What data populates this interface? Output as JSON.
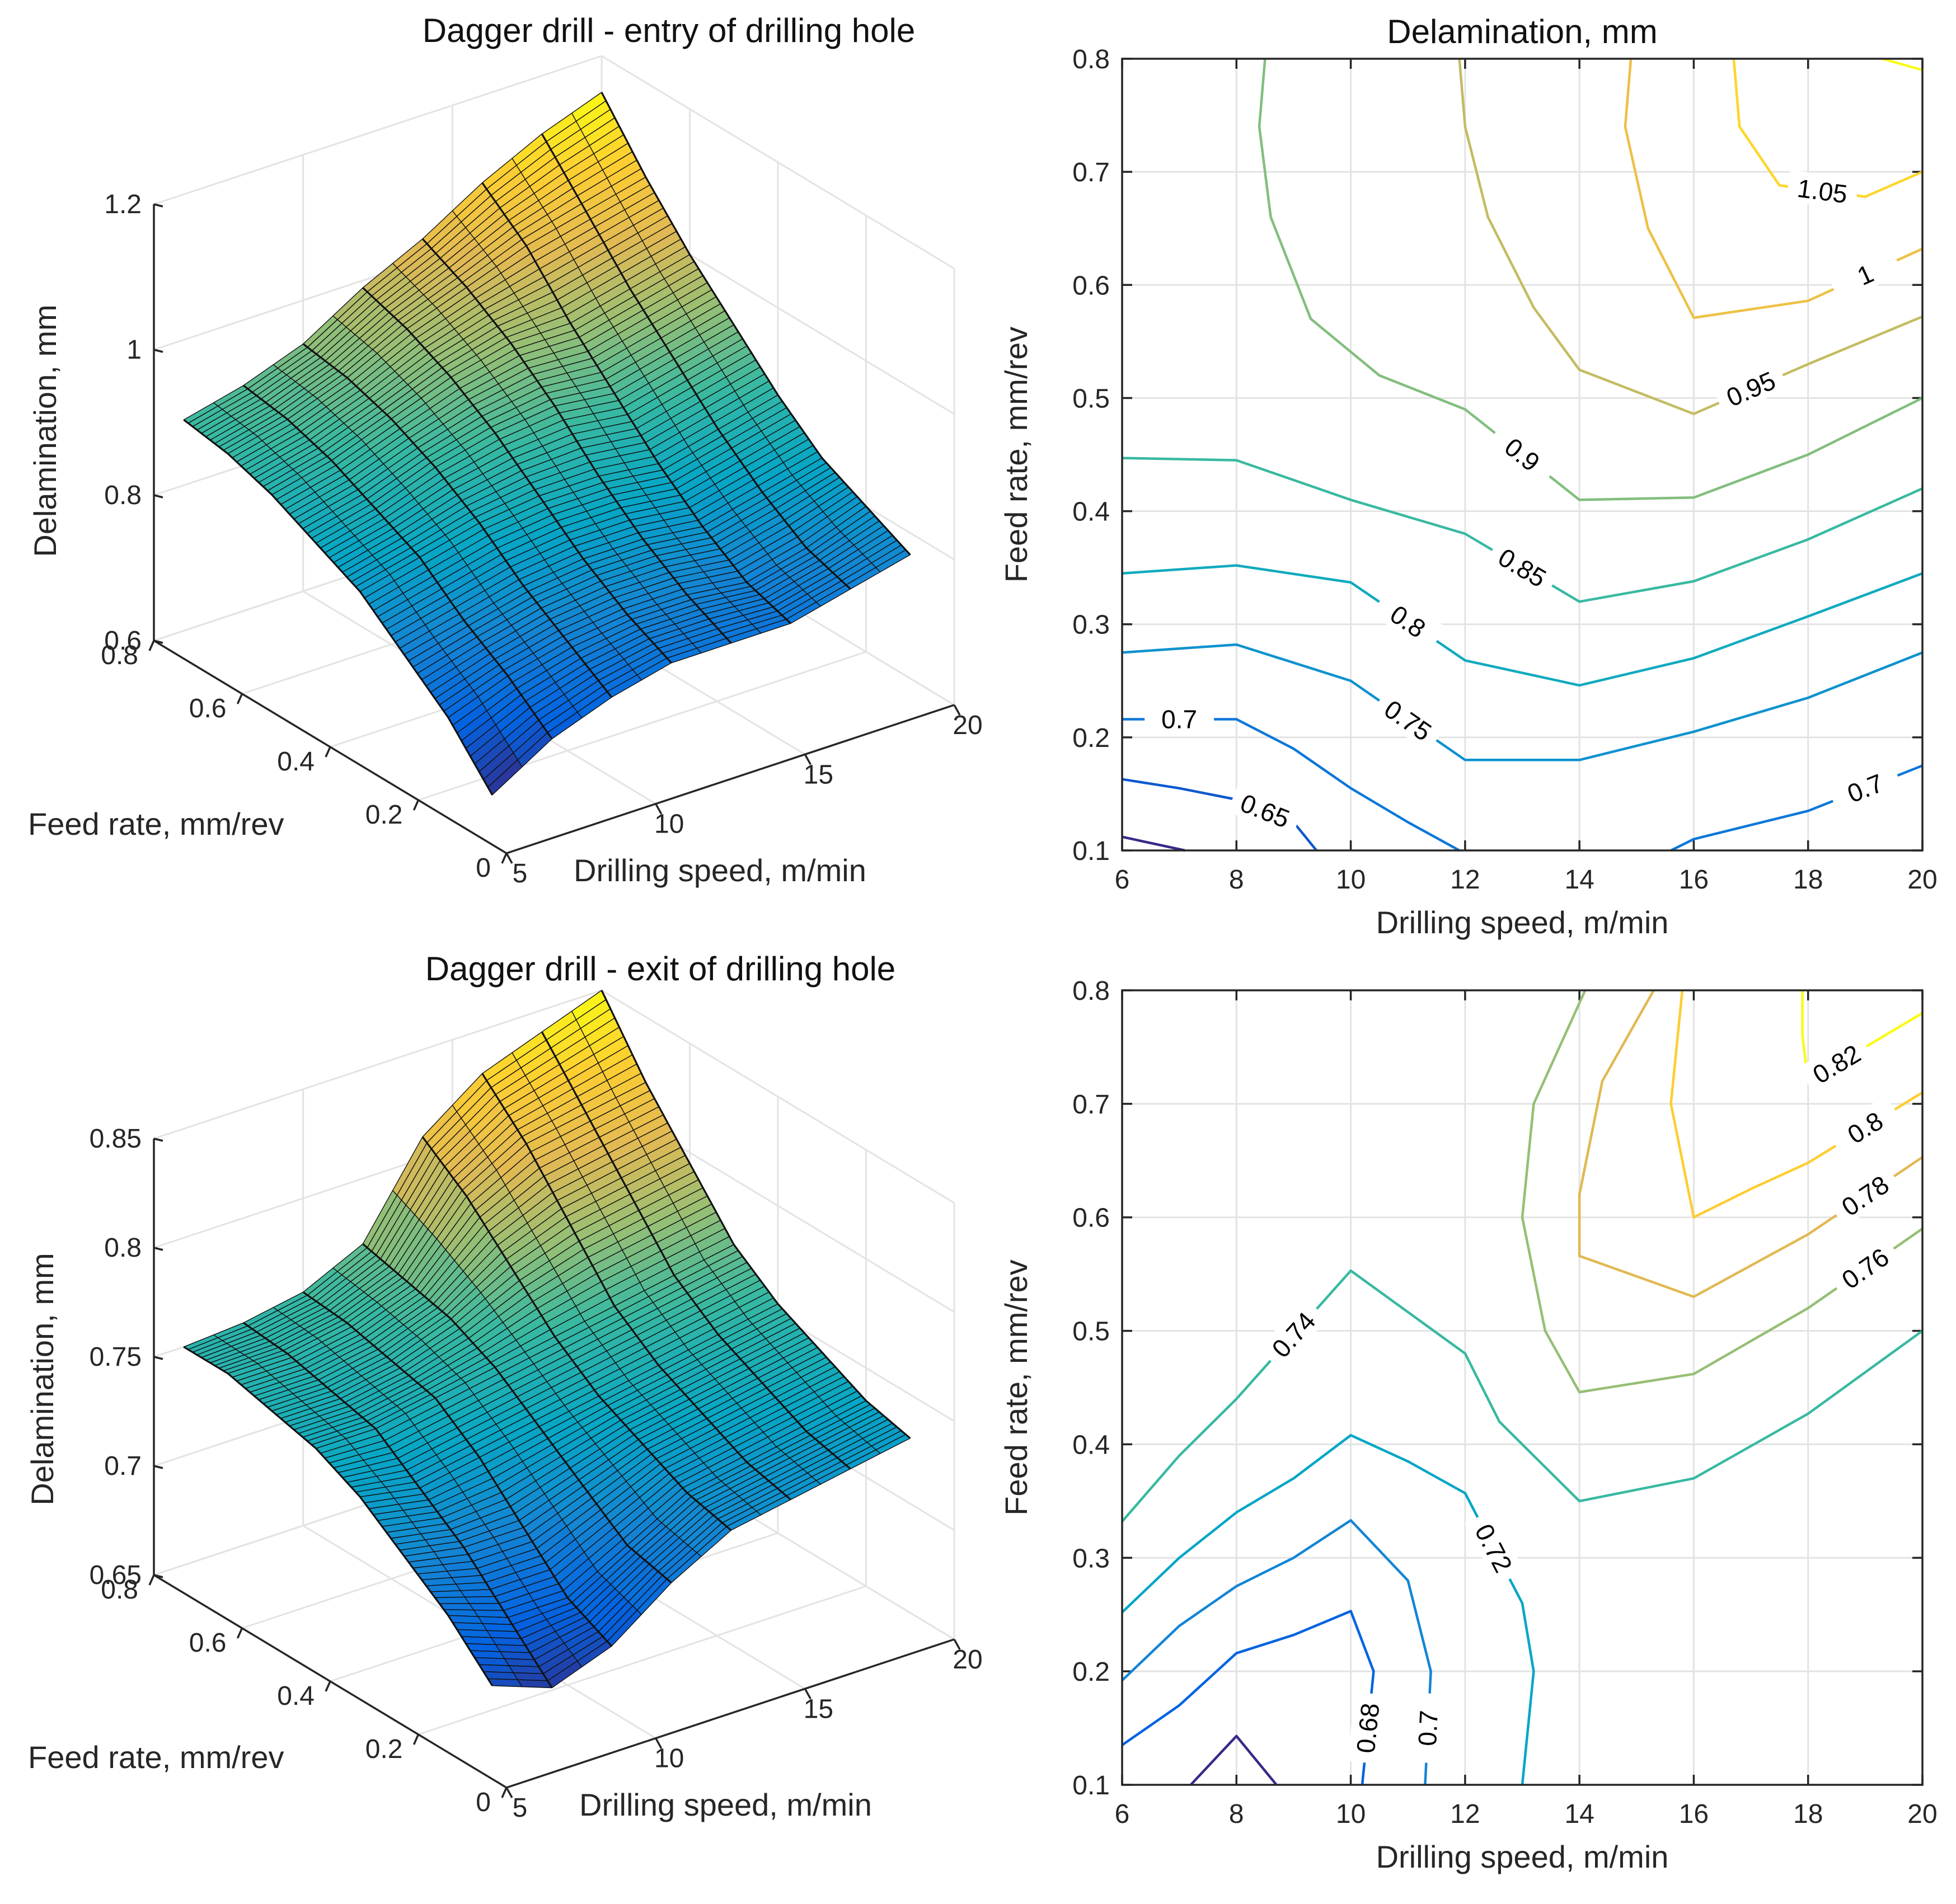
{
  "chart_data": [
    {
      "type": "surface",
      "panel": "top-left",
      "title": "Dagger drill - entry of drilling hole",
      "xlabel": "Drilling speed, m/min",
      "ylabel": "Feed rate, mm/rev",
      "zlabel": "Delamination, mm",
      "xlim": [
        5,
        20
      ],
      "ylim": [
        0,
        0.8
      ],
      "zlim": [
        0.6,
        1.2
      ],
      "xticks": [
        "5",
        "10",
        "15",
        "20"
      ],
      "yticks": [
        "0",
        "0.2",
        "0.4",
        "0.6",
        "0.8"
      ],
      "zticks": [
        "0.6",
        "0.8",
        "1",
        "1.2"
      ],
      "x_speed": [
        6,
        8,
        10,
        12,
        14,
        16,
        18,
        20
      ],
      "y_feed": [
        0.1,
        0.2,
        0.3,
        0.4,
        0.5,
        0.6,
        0.7,
        0.8
      ],
      "z": [
        [
          0.63,
          0.68,
          0.71,
          0.73,
          0.73,
          0.73,
          0.75,
          0.77
        ],
        [
          0.7,
          0.73,
          0.75,
          0.76,
          0.76,
          0.75,
          0.77,
          0.8
        ],
        [
          0.75,
          0.77,
          0.79,
          0.8,
          0.8,
          0.79,
          0.81,
          0.83
        ],
        [
          0.8,
          0.82,
          0.84,
          0.85,
          0.85,
          0.84,
          0.86,
          0.88
        ],
        [
          0.83,
          0.85,
          0.88,
          0.9,
          0.91,
          0.9,
          0.92,
          0.94
        ],
        [
          0.86,
          0.88,
          0.91,
          0.94,
          0.96,
          0.96,
          0.98,
          1.0
        ],
        [
          0.88,
          0.9,
          0.93,
          0.97,
          1.0,
          1.03,
          1.05,
          1.07
        ],
        [
          0.89,
          0.91,
          0.94,
          0.99,
          1.03,
          1.08,
          1.12,
          1.15
        ]
      ]
    },
    {
      "type": "contour",
      "panel": "top-right",
      "title": "Delamination, mm",
      "xlabel": "Drilling speed, m/min",
      "ylabel": "Feed rate, mm/rev",
      "xlim": [
        6,
        20
      ],
      "ylim": [
        0.1,
        0.8
      ],
      "xticks": [
        "6",
        "8",
        "10",
        "12",
        "14",
        "16",
        "18",
        "20"
      ],
      "yticks": [
        "0.1",
        "0.2",
        "0.3",
        "0.4",
        "0.5",
        "0.6",
        "0.7",
        "0.8"
      ],
      "levels": [
        {
          "level": 0.6,
          "label": "",
          "points": [
            [
              6,
              0.112
            ],
            [
              7.1,
              0.1
            ]
          ]
        },
        {
          "level": 0.65,
          "label": "0.65",
          "points": [
            [
              6,
              0.163
            ],
            [
              7,
              0.155
            ],
            [
              8,
              0.145
            ],
            [
              9,
              0.125
            ],
            [
              9.4,
              0.1
            ]
          ]
        },
        {
          "level": 0.7,
          "label": "0.7",
          "points": [
            [
              6,
              0.216
            ],
            [
              8,
              0.216
            ],
            [
              9,
              0.19
            ],
            [
              10,
              0.155
            ],
            [
              11,
              0.125
            ],
            [
              11.9,
              0.1
            ]
          ]
        },
        {
          "level": 0.7,
          "label": "0.7",
          "points": [
            [
              15.6,
              0.1
            ],
            [
              16,
              0.11
            ],
            [
              18,
              0.135
            ],
            [
              20,
              0.175
            ]
          ]
        },
        {
          "level": 0.75,
          "label": "0.75",
          "points": [
            [
              6,
              0.275
            ],
            [
              8,
              0.282
            ],
            [
              10,
              0.25
            ],
            [
              12,
              0.18
            ],
            [
              14,
              0.18
            ],
            [
              16,
              0.205
            ],
            [
              18,
              0.235
            ],
            [
              20,
              0.275
            ]
          ]
        },
        {
          "level": 0.8,
          "label": "0.8",
          "points": [
            [
              6,
              0.345
            ],
            [
              8,
              0.352
            ],
            [
              10,
              0.337
            ],
            [
              12,
              0.268
            ],
            [
              14,
              0.246
            ],
            [
              16,
              0.27
            ],
            [
              18,
              0.307
            ],
            [
              20,
              0.345
            ]
          ]
        },
        {
          "level": 0.85,
          "label": "0.85",
          "points": [
            [
              6,
              0.447
            ],
            [
              8,
              0.445
            ],
            [
              10,
              0.41
            ],
            [
              12,
              0.38
            ],
            [
              14,
              0.32
            ],
            [
              16,
              0.338
            ],
            [
              18,
              0.375
            ],
            [
              20,
              0.42
            ]
          ]
        },
        {
          "level": 0.9,
          "label": "0.9",
          "points": [
            [
              8.5,
              0.8
            ],
            [
              8.4,
              0.74
            ],
            [
              8.6,
              0.66
            ],
            [
              9.3,
              0.57
            ],
            [
              10.5,
              0.52
            ],
            [
              12,
              0.49
            ],
            [
              14,
              0.41
            ],
            [
              16,
              0.412
            ],
            [
              18,
              0.45
            ],
            [
              20,
              0.5
            ]
          ]
        },
        {
          "level": 0.95,
          "label": "0.95",
          "points": [
            [
              11.9,
              0.8
            ],
            [
              12,
              0.74
            ],
            [
              12.4,
              0.66
            ],
            [
              13.2,
              0.58
            ],
            [
              14,
              0.525
            ],
            [
              16,
              0.486
            ],
            [
              18,
              0.53
            ],
            [
              20,
              0.572
            ]
          ]
        },
        {
          "level": 1.0,
          "label": "1",
          "points": [
            [
              14.9,
              0.8
            ],
            [
              14.8,
              0.74
            ],
            [
              15.2,
              0.65
            ],
            [
              16,
              0.571
            ],
            [
              18,
              0.586
            ],
            [
              20,
              0.632
            ]
          ]
        },
        {
          "level": 1.05,
          "label": "1.05",
          "points": [
            [
              16.7,
              0.8
            ],
            [
              16.8,
              0.74
            ],
            [
              17.5,
              0.688
            ],
            [
              19,
              0.678
            ],
            [
              20,
              0.7
            ]
          ]
        },
        {
          "level": 1.1,
          "label": "",
          "points": [
            [
              19.3,
              0.8
            ],
            [
              20,
              0.79
            ]
          ]
        }
      ]
    },
    {
      "type": "surface",
      "panel": "bottom-left",
      "title": "Dagger drill - exit of drilling hole",
      "xlabel": "Drilling speed, m/min",
      "ylabel": "Feed rate, mm/rev",
      "zlabel": "Delamination, mm",
      "xlim": [
        5,
        20
      ],
      "ylim": [
        0,
        0.8
      ],
      "zlim": [
        0.65,
        0.85
      ],
      "xticks": [
        "5",
        "10",
        "15",
        "20"
      ],
      "yticks": [
        "0",
        "0.2",
        "0.4",
        "0.6",
        "0.8"
      ],
      "zticks": [
        "0.65",
        "0.7",
        "0.75",
        "0.8",
        "0.85"
      ],
      "x_speed": [
        6,
        8,
        10,
        12,
        14,
        16,
        18,
        20
      ],
      "y_feed": [
        0.1,
        0.2,
        0.3,
        0.4,
        0.5,
        0.6,
        0.7,
        0.8
      ],
      "z": [
        [
          0.68,
          0.67,
          0.68,
          0.7,
          0.715,
          0.72,
          0.725,
          0.73
        ],
        [
          0.7,
          0.69,
          0.69,
          0.705,
          0.72,
          0.725,
          0.73,
          0.735
        ],
        [
          0.715,
          0.71,
          0.71,
          0.72,
          0.73,
          0.735,
          0.74,
          0.745
        ],
        [
          0.73,
          0.725,
          0.73,
          0.735,
          0.74,
          0.745,
          0.75,
          0.755
        ],
        [
          0.74,
          0.74,
          0.745,
          0.75,
          0.755,
          0.76,
          0.765,
          0.77
        ],
        [
          0.745,
          0.745,
          0.75,
          0.76,
          0.775,
          0.785,
          0.79,
          0.795
        ],
        [
          0.75,
          0.75,
          0.755,
          0.765,
          0.795,
          0.81,
          0.815,
          0.82
        ],
        [
          0.75,
          0.752,
          0.757,
          0.77,
          0.81,
          0.83,
          0.84,
          0.85
        ]
      ]
    },
    {
      "type": "contour",
      "panel": "bottom-right",
      "title": "",
      "xlabel": "Drilling speed, m/min",
      "ylabel": "Feed rate, mm/rev",
      "xlim": [
        6,
        20
      ],
      "ylim": [
        0.1,
        0.8
      ],
      "xticks": [
        "6",
        "8",
        "10",
        "12",
        "14",
        "16",
        "18",
        "20"
      ],
      "yticks": [
        "0.1",
        "0.2",
        "0.3",
        "0.4",
        "0.5",
        "0.6",
        "0.7",
        "0.8"
      ],
      "levels": [
        {
          "level": 0.66,
          "label": "",
          "points": [
            [
              7.2,
              0.1
            ],
            [
              8,
              0.143
            ],
            [
              8.7,
              0.1
            ]
          ]
        },
        {
          "level": 0.68,
          "label": "0.68",
          "points": [
            [
              6,
              0.135
            ],
            [
              7,
              0.17
            ],
            [
              8,
              0.216
            ],
            [
              9,
              0.232
            ],
            [
              10,
              0.253
            ],
            [
              10.4,
              0.2
            ],
            [
              10.2,
              0.1
            ]
          ]
        },
        {
          "level": 0.7,
          "label": "0.7",
          "points": [
            [
              6,
              0.192
            ],
            [
              7,
              0.24
            ],
            [
              8,
              0.275
            ],
            [
              9,
              0.3
            ],
            [
              10,
              0.333
            ],
            [
              11,
              0.28
            ],
            [
              11.4,
              0.2
            ],
            [
              11.3,
              0.1
            ]
          ]
        },
        {
          "level": 0.72,
          "label": "0.72",
          "points": [
            [
              6,
              0.252
            ],
            [
              7,
              0.3
            ],
            [
              8,
              0.34
            ],
            [
              9,
              0.37
            ],
            [
              10,
              0.408
            ],
            [
              11,
              0.385
            ],
            [
              12,
              0.357
            ],
            [
              13,
              0.26
            ],
            [
              13.2,
              0.2
            ],
            [
              13,
              0.1
            ]
          ]
        },
        {
          "level": 0.74,
          "label": "0.74",
          "points": [
            [
              6,
              0.332
            ],
            [
              7,
              0.39
            ],
            [
              8,
              0.44
            ],
            [
              10,
              0.553
            ],
            [
              12,
              0.48
            ],
            [
              12.6,
              0.42
            ],
            [
              14,
              0.35
            ],
            [
              16,
              0.37
            ],
            [
              18,
              0.427
            ],
            [
              20,
              0.5
            ]
          ]
        },
        {
          "level": 0.76,
          "label": "0.76",
          "points": [
            [
              14.1,
              0.8
            ],
            [
              13.2,
              0.7
            ],
            [
              13,
              0.6
            ],
            [
              13.4,
              0.5
            ],
            [
              14,
              0.446
            ],
            [
              16,
              0.462
            ],
            [
              18,
              0.52
            ],
            [
              20,
              0.59
            ]
          ]
        },
        {
          "level": 0.78,
          "label": "0.78",
          "points": [
            [
              15.3,
              0.8
            ],
            [
              14.4,
              0.72
            ],
            [
              14,
              0.62
            ],
            [
              14,
              0.566
            ],
            [
              16,
              0.53
            ],
            [
              18,
              0.585
            ],
            [
              20,
              0.653
            ]
          ]
        },
        {
          "level": 0.8,
          "label": "0.8",
          "points": [
            [
              15.8,
              0.8
            ],
            [
              15.6,
              0.7
            ],
            [
              16,
              0.6
            ],
            [
              17,
              0.625
            ],
            [
              18,
              0.648
            ],
            [
              20,
              0.71
            ]
          ]
        },
        {
          "level": 0.82,
          "label": "0.82",
          "points": [
            [
              17.9,
              0.8
            ],
            [
              17.9,
              0.76
            ],
            [
              18,
              0.72
            ],
            [
              19,
              0.75
            ],
            [
              20,
              0.78
            ]
          ]
        }
      ]
    }
  ]
}
